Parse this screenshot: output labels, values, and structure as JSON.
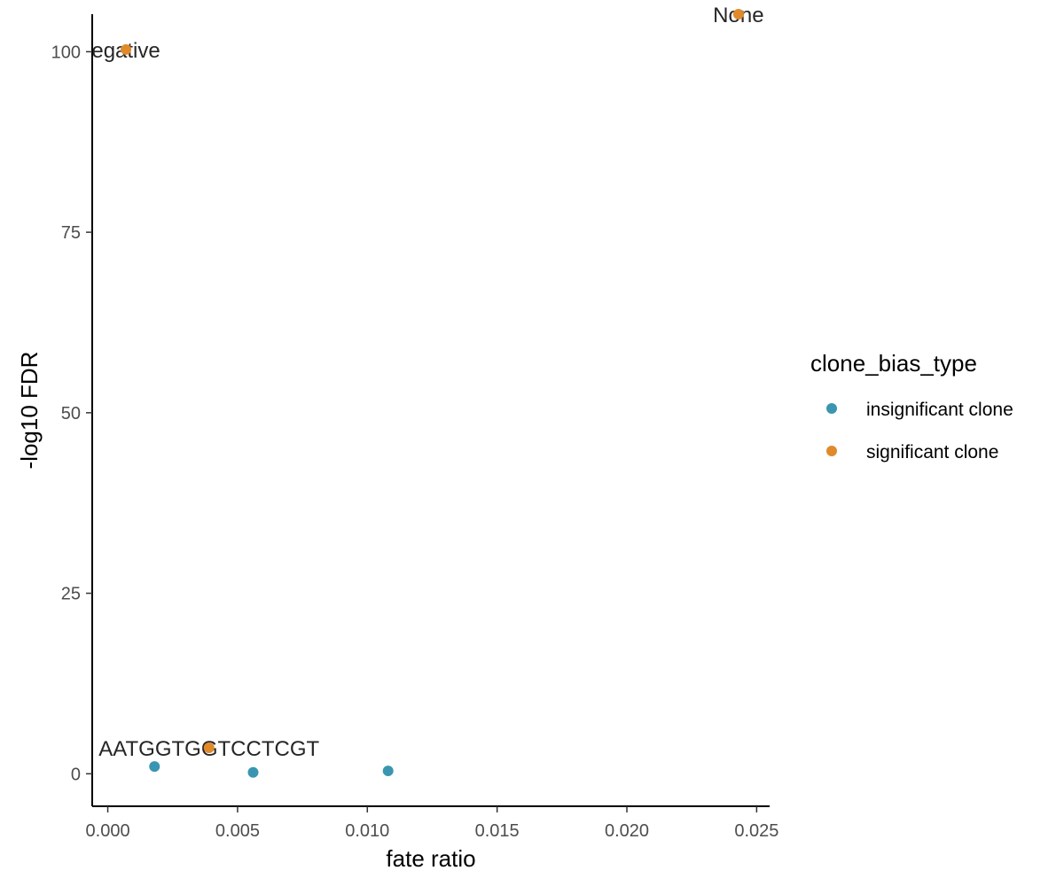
{
  "chart_data": {
    "type": "scatter",
    "xlabel": "fate ratio",
    "ylabel": "-log10 FDR",
    "xlim": [
      -0.0006,
      0.0255
    ],
    "ylim": [
      -4.5,
      105.2
    ],
    "x_ticks": [
      0,
      0.005,
      0.01,
      0.015,
      0.02,
      0.025
    ],
    "x_tick_labels": [
      "0.000",
      "0.005",
      "0.010",
      "0.015",
      "0.020",
      "0.025"
    ],
    "y_ticks": [
      0,
      25,
      50,
      75,
      100
    ],
    "y_tick_labels": [
      "0",
      "25",
      "50",
      "75",
      "100"
    ],
    "grid": false,
    "legend": {
      "title": "clone_bias_type",
      "placement": "right",
      "entries": [
        {
          "label": "insignificant clone",
          "color": "#3a96b0"
        },
        {
          "label": "significant clone",
          "color": "#e08a2b"
        }
      ]
    },
    "series": [
      {
        "name": "insignificant clone",
        "color": "#3a96b0",
        "points": [
          {
            "x": 0.0018,
            "y": 1.0
          },
          {
            "x": 0.0056,
            "y": 0.2
          },
          {
            "x": 0.0108,
            "y": 0.4
          }
        ]
      },
      {
        "name": "significant clone",
        "color": "#e08a2b",
        "points": [
          {
            "x": 0.0007,
            "y": 100.3
          },
          {
            "x": 0.0039,
            "y": 3.6
          },
          {
            "x": 0.0243,
            "y": 105.2
          }
        ]
      }
    ],
    "annotations": [
      {
        "text": "egative",
        "x": 0.0007,
        "y": 100.3
      },
      {
        "text": "AATGGTGGTCCTCGT",
        "x": 0.0039,
        "y": 3.6
      },
      {
        "text": "None",
        "x": 0.0243,
        "y": 105.2
      }
    ]
  }
}
